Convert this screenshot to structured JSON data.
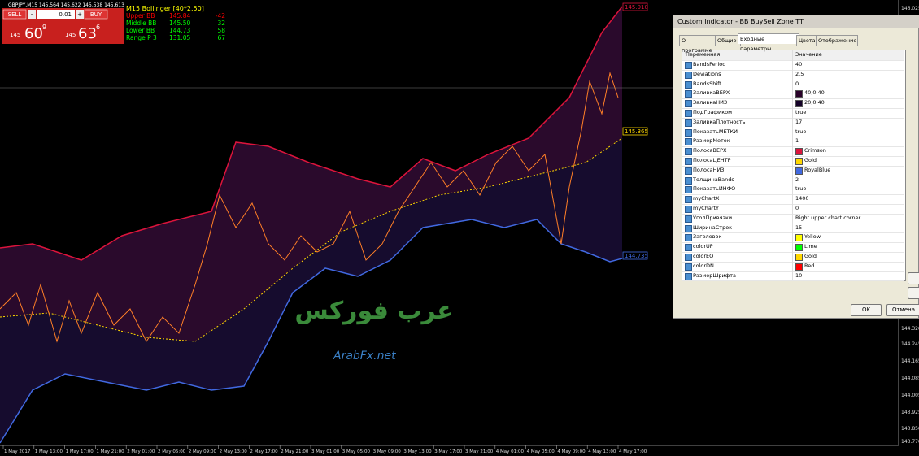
{
  "header": {
    "symbol": "GBPJPY,M15  145.564 145.622 145.538 145.613"
  },
  "trade_panel": {
    "sell": "SELL",
    "buy": "BUY",
    "lot": "0.01",
    "minus": "-",
    "plus": "+",
    "sell_big": "145",
    "sell_main": "60",
    "sell_sup": "9",
    "buy_big": "145",
    "buy_main": "63",
    "buy_sup": "6"
  },
  "info": {
    "title": "M15 Bollinger [40*2.50]",
    "rows": [
      [
        "Upper BB",
        "145.84",
        "-42"
      ],
      [
        "Middle BB",
        "145.50",
        "32"
      ],
      [
        "Lower BB",
        "144.73",
        "58"
      ],
      [
        "Range P 3",
        "131.05",
        "67"
      ]
    ]
  },
  "price_tags": {
    "upper": "145.910",
    "middle": "145.365",
    "lower": "144.735"
  },
  "price_axis": [
    "146.025",
    "144.320",
    "144.245",
    "144.165",
    "144.085",
    "144.005",
    "143.925",
    "143.850",
    "143.770"
  ],
  "time_axis": [
    "1 May 2017",
    "1 May 13:00",
    "1 May 17:00",
    "1 May 21:00",
    "2 May 01:00",
    "2 May 05:00",
    "2 May 09:00",
    "2 May 13:00",
    "2 May 17:00",
    "2 May 21:00",
    "3 May 01:00",
    "3 May 05:00",
    "3 May 09:00",
    "3 May 13:00",
    "3 May 17:00",
    "3 May 21:00",
    "4 May 01:00",
    "4 May 05:00",
    "4 May 09:00",
    "4 May 13:00",
    "4 May 17:00"
  ],
  "watermark": {
    "arabic": "عرب فوركس",
    "latin": "ArabFx.net"
  },
  "dialog": {
    "title": "Custom Indicator - BB BuySell Zone TT",
    "tabs": [
      "О программе",
      "Общие",
      "Входные параметры",
      "Цвета",
      "Отображение"
    ],
    "columns": [
      "Переменная",
      "Значение"
    ],
    "rows": [
      {
        "name": "BandsPeriod",
        "value": "40"
      },
      {
        "name": "Deviations",
        "value": "2.5"
      },
      {
        "name": "BandsShift",
        "value": "0"
      },
      {
        "name": "ЗаливкаВЕРХ",
        "value": "40,0,40",
        "swatch": "#280028"
      },
      {
        "name": "ЗаливкаНИЗ",
        "value": "20,0,40",
        "swatch": "#140028"
      },
      {
        "name": "ПодГрафиком",
        "value": "true"
      },
      {
        "name": "ЗаливкаПлотность",
        "value": "17"
      },
      {
        "name": "ПоказатьМЕТКИ",
        "value": "true"
      },
      {
        "name": "РазмерМеток",
        "value": "1"
      },
      {
        "name": "ПолосаВЕРХ",
        "value": "Crimson",
        "swatch": "#dc143c"
      },
      {
        "name": "ПолосаЦЕНТР",
        "value": "Gold",
        "swatch": "#ffd700"
      },
      {
        "name": "ПолосаНИЗ",
        "value": "RoyalBlue",
        "swatch": "#4169e1"
      },
      {
        "name": "ТолщинаBands",
        "value": "2"
      },
      {
        "name": "ПоказатьИНФО",
        "value": "true"
      },
      {
        "name": "myChartX",
        "value": "1400"
      },
      {
        "name": "myChartY",
        "value": "0"
      },
      {
        "name": "УголПривязки",
        "value": "Right upper chart corner"
      },
      {
        "name": "ШиринаСтрок",
        "value": "15"
      },
      {
        "name": "Заголовок",
        "value": "Yellow",
        "swatch": "#ffff00"
      },
      {
        "name": "colorUP",
        "value": "Lime",
        "swatch": "#00ff00"
      },
      {
        "name": "colorEQ",
        "value": "Gold",
        "swatch": "#ffd700"
      },
      {
        "name": "colorDN",
        "value": "Red",
        "swatch": "#ff0000"
      },
      {
        "name": "РазмерШрифта",
        "value": "10"
      }
    ],
    "ok": "OK",
    "cancel": "Отмена"
  }
}
